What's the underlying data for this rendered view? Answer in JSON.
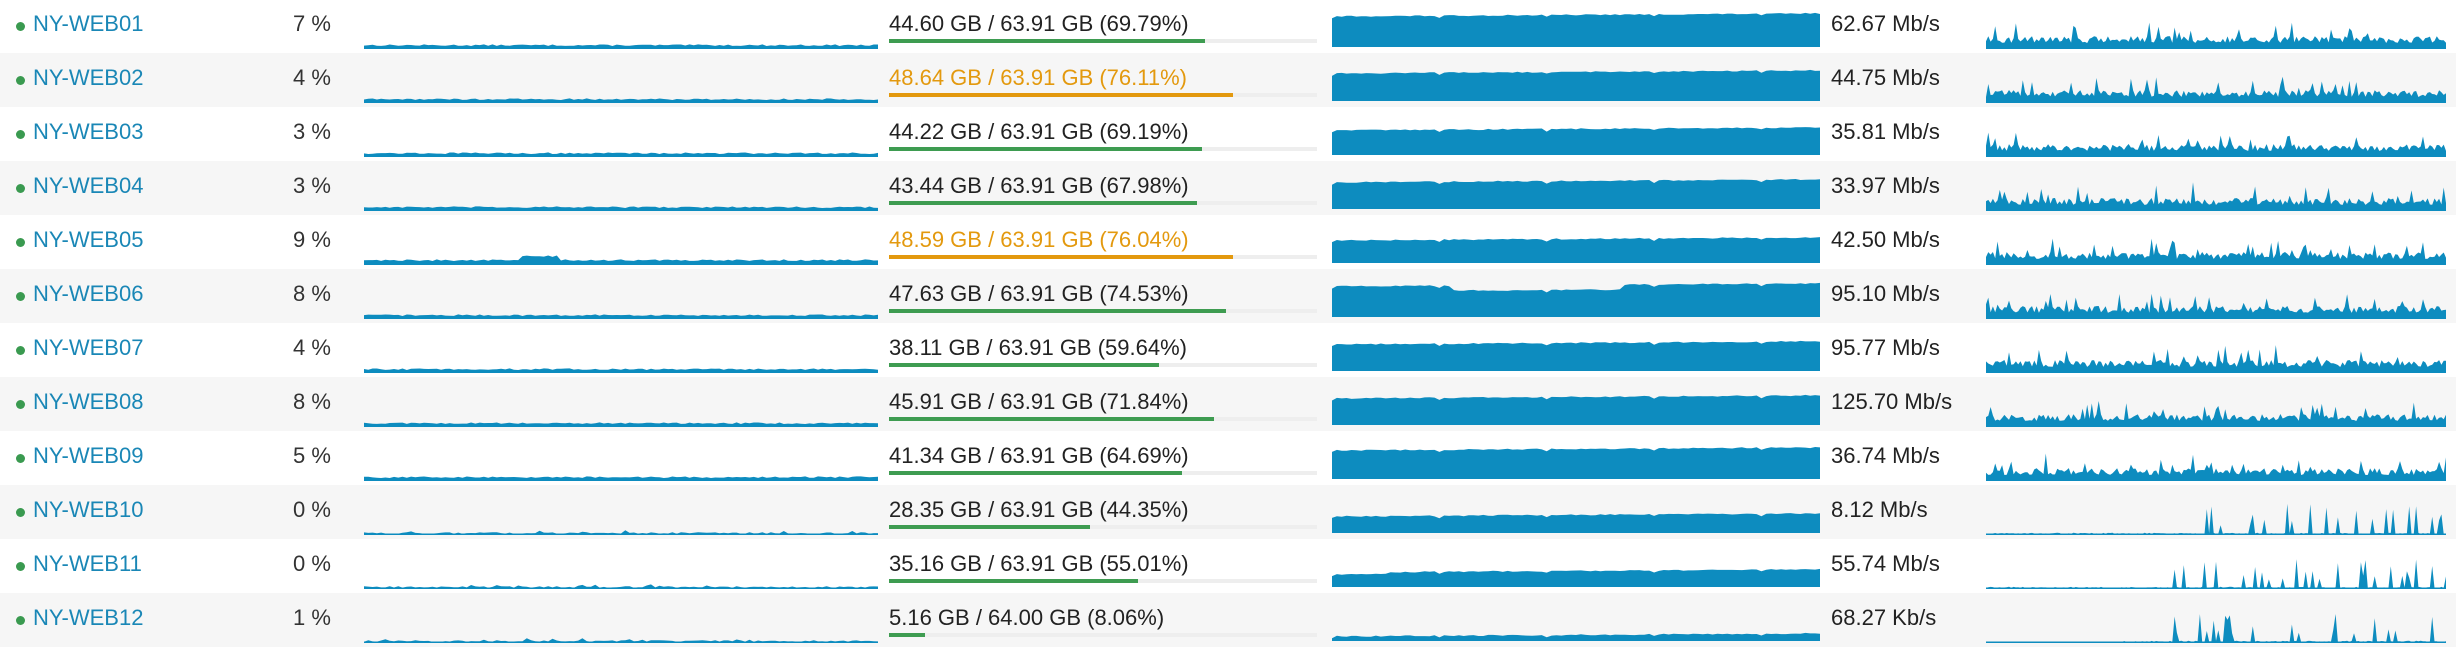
{
  "colors": {
    "link": "#1a87b6",
    "status_ok": "#3a9a50",
    "graph": "#0d8cbf",
    "bar_ok": "#3e9c51",
    "warning": "#e3990e"
  },
  "servers": [
    {
      "name": "NY-WEB01",
      "cpu": "7 %",
      "memory": "44.60 GB / 63.91 GB (69.79%)",
      "memory_used_fraction": 0.6979,
      "memory_warning": false,
      "network": "62.67 Mb/s"
    },
    {
      "name": "NY-WEB02",
      "cpu": "4 %",
      "memory": "48.64 GB / 63.91 GB (76.11%)",
      "memory_used_fraction": 0.7611,
      "memory_warning": true,
      "network": "44.75 Mb/s"
    },
    {
      "name": "NY-WEB03",
      "cpu": "3 %",
      "memory": "44.22 GB / 63.91 GB (69.19%)",
      "memory_used_fraction": 0.6919,
      "memory_warning": false,
      "network": "35.81 Mb/s"
    },
    {
      "name": "NY-WEB04",
      "cpu": "3 %",
      "memory": "43.44 GB / 63.91 GB (67.98%)",
      "memory_used_fraction": 0.6798,
      "memory_warning": false,
      "network": "33.97 Mb/s"
    },
    {
      "name": "NY-WEB05",
      "cpu": "9 %",
      "memory": "48.59 GB / 63.91 GB (76.04%)",
      "memory_used_fraction": 0.7604,
      "memory_warning": true,
      "network": "42.50 Mb/s"
    },
    {
      "name": "NY-WEB06",
      "cpu": "8 %",
      "memory": "47.63 GB / 63.91 GB (74.53%)",
      "memory_used_fraction": 0.7453,
      "memory_warning": false,
      "network": "95.10 Mb/s"
    },
    {
      "name": "NY-WEB07",
      "cpu": "4 %",
      "memory": "38.11 GB / 63.91 GB (59.64%)",
      "memory_used_fraction": 0.5964,
      "memory_warning": false,
      "network": "95.77 Mb/s"
    },
    {
      "name": "NY-WEB08",
      "cpu": "8 %",
      "memory": "45.91 GB / 63.91 GB (71.84%)",
      "memory_used_fraction": 0.7184,
      "memory_warning": false,
      "network": "125.70 Mb/s"
    },
    {
      "name": "NY-WEB09",
      "cpu": "5 %",
      "memory": "41.34 GB / 63.91 GB (64.69%)",
      "memory_used_fraction": 0.6469,
      "memory_warning": false,
      "network": "36.74 Mb/s"
    },
    {
      "name": "NY-WEB10",
      "cpu": "0 %",
      "memory": "28.35 GB / 63.91 GB (44.35%)",
      "memory_used_fraction": 0.4435,
      "memory_warning": false,
      "network": "8.12 Mb/s"
    },
    {
      "name": "NY-WEB11",
      "cpu": "0 %",
      "memory": "35.16 GB / 63.91 GB (55.01%)",
      "memory_used_fraction": 0.5501,
      "memory_warning": false,
      "network": "55.74 Mb/s"
    },
    {
      "name": "NY-WEB12",
      "cpu": "1 %",
      "memory": "5.16 GB / 64.00 GB (8.06%)",
      "memory_used_fraction": 0.0806,
      "memory_warning": false,
      "network": "68.27 Kb/s"
    }
  ]
}
